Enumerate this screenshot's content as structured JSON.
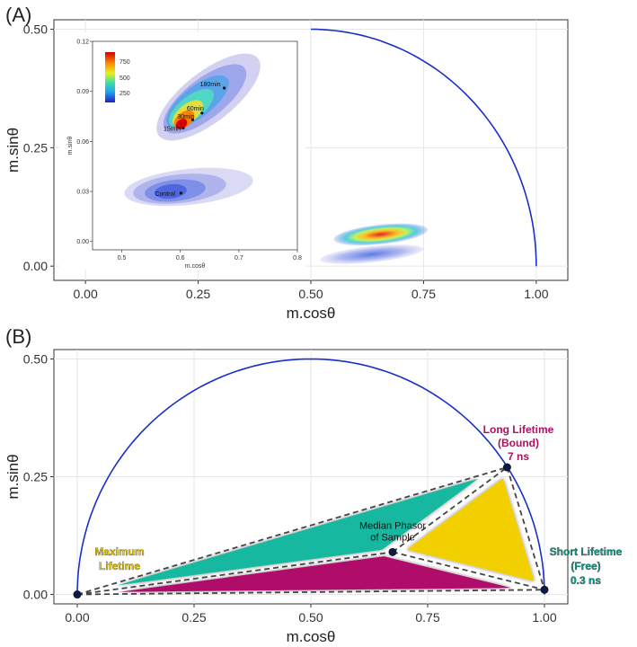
{
  "colors": {
    "semicircle": "#1a2fc9",
    "teal": "#14b8a0",
    "magenta": "#b0106a",
    "yellow": "#f2d000",
    "label_long": "#b01060",
    "label_short": "#0f9c8a",
    "label_max": "#f2d000",
    "grid": "#e6e6e6"
  },
  "chart_data": [
    {
      "panel_label": "(A)",
      "type": "scatter",
      "title": "",
      "xlabel": "m.cosθ",
      "ylabel": "m.sinθ",
      "xlim": [
        -0.07,
        1.07
      ],
      "ylim": [
        -0.03,
        0.52
      ],
      "x_ticks": [
        "0.00",
        "0.25",
        "0.50",
        "0.75",
        "1.00"
      ],
      "y_ticks": [
        "0.00",
        "0.25",
        "0.50"
      ],
      "grid": true,
      "series": [
        {
          "name": "universal semicircle (quarter shown)",
          "values": "arc from (0.5, 0.5) to (1.0, 0.0)"
        }
      ],
      "density_clouds": [
        {
          "name": "treated",
          "center": [
            0.63,
            0.067
          ],
          "extent_x": [
            0.55,
            0.76
          ]
        },
        {
          "name": "control",
          "center": [
            0.6,
            0.025
          ],
          "extent_x": [
            0.52,
            0.75
          ]
        }
      ],
      "inset": {
        "type": "heatmap",
        "xlabel": "m.cosθ",
        "ylabel": "m.sinθ",
        "xlim": [
          0.45,
          0.8
        ],
        "ylim": [
          -0.005,
          0.12
        ],
        "x_ticks": [
          "0.5",
          "0.6",
          "0.7",
          "0.8"
        ],
        "y_ticks": [
          "0.00",
          "0.03",
          "0.06",
          "0.09",
          "0.12"
        ],
        "colorbar_ticks": [
          "750",
          "500",
          "250"
        ],
        "points": [
          {
            "label": "180min",
            "x": 0.675,
            "y": 0.092
          },
          {
            "label": "60min",
            "x": 0.637,
            "y": 0.077
          },
          {
            "label": "30min",
            "x": 0.621,
            "y": 0.073
          },
          {
            "label": "15min",
            "x": 0.605,
            "y": 0.068
          },
          {
            "label": "Control",
            "x": 0.601,
            "y": 0.029
          }
        ]
      }
    },
    {
      "panel_label": "(B)",
      "type": "scatter",
      "title": "",
      "xlabel": "m.cosθ",
      "ylabel": "m.sinθ",
      "xlim": [
        -0.05,
        1.05
      ],
      "ylim": [
        -0.02,
        0.52
      ],
      "x_ticks": [
        "0.00",
        "0.25",
        "0.50",
        "0.75",
        "1.00"
      ],
      "y_ticks": [
        "0.00",
        "0.25",
        "0.50"
      ],
      "grid": true,
      "points": [
        {
          "name": "maximum-lifetime",
          "x": 0.0,
          "y": 0.0
        },
        {
          "name": "median-phasor",
          "x": 0.675,
          "y": 0.09
        },
        {
          "name": "long-lifetime",
          "x": 0.92,
          "y": 0.27
        },
        {
          "name": "short-lifetime",
          "x": 1.0,
          "y": 0.01
        }
      ],
      "annotations": {
        "long": [
          "Long Lifetime",
          "(Bound)",
          "7 ns"
        ],
        "short": [
          "Short Lifetime",
          "(Free)",
          "0.3 ns"
        ],
        "max": [
          "Maximum",
          "Lifetime"
        ],
        "median": [
          "Median Phasor",
          "of Sample"
        ]
      }
    }
  ]
}
